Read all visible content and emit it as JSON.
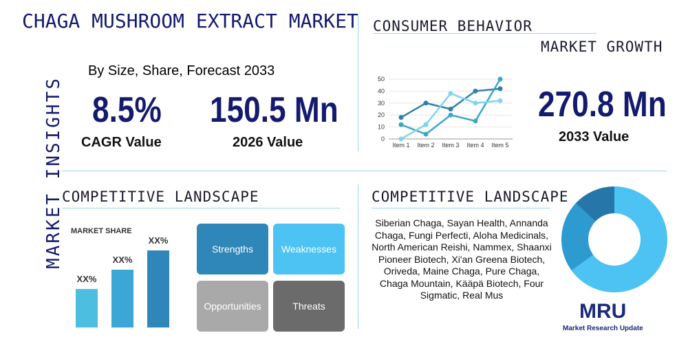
{
  "title": "CHAGA MUSHROOM EXTRACT MARKET",
  "side_label": "MARKET INSIGHTS",
  "subtitle": "By Size, Share, Forecast 2033",
  "stats": [
    {
      "value": "8.5%",
      "label": "CAGR Value"
    },
    {
      "value": "150.5 Mn",
      "label": "2026 Value"
    },
    {
      "value": "270.8 Mn",
      "label": "2033 Value"
    }
  ],
  "consumer_heading": "CONSUMER BEHAVIOR",
  "growth_heading": "MARKET GROWTH",
  "competitive_heading_left": "COMPETITIVE LANDSCAPE",
  "competitive_heading_right": "COMPETITIVE LANDSCAPE",
  "swot": [
    "Strengths",
    "Weaknesses",
    "Opportunities",
    "Threats"
  ],
  "companies": "Siberian Chaga, Sayan Health, Annanda Chaga, Fungi Perfecti, Aloha Medicinals, North American Reishi, Nammex, Shaanxi Pioneer Biotech, Xi'an Greena Biotech, Oriveda, Maine Chaga, Pure Chaga, Chaga Mountain, Kääpä Biotech, Four Sigmatic, Real Mus",
  "logo": {
    "mark": "MRU",
    "name": "Market Research Update"
  },
  "chart_data": [
    {
      "type": "line",
      "categories": [
        "Item 1",
        "Item 2",
        "Item 3",
        "Item 4",
        "Item 5"
      ],
      "ylim": [
        0,
        50
      ],
      "yticks": [
        0,
        10,
        20,
        30,
        40,
        50
      ],
      "series": [
        {
          "color": "#2f7fa6",
          "values": [
            18,
            30,
            25,
            40,
            42
          ]
        },
        {
          "color": "#3aa7c9",
          "values": [
            12,
            4,
            20,
            15,
            50
          ]
        },
        {
          "color": "#7fd6ea",
          "values": [
            0,
            12,
            38,
            30,
            32
          ]
        }
      ]
    },
    {
      "type": "bar",
      "title": "MARKET SHARE",
      "categories": [
        null,
        null,
        null
      ],
      "values": [
        50,
        75,
        100
      ],
      "value_labels": [
        "XX%",
        "XX%",
        "XX%"
      ],
      "colors": [
        "#4cbfe0",
        "#3aa7d6",
        "#2f86b8"
      ]
    },
    {
      "type": "pie",
      "values": [
        65,
        22,
        13
      ],
      "colors": [
        "#4cc3f2",
        "#2d9ad0",
        "#2676aa"
      ]
    }
  ]
}
